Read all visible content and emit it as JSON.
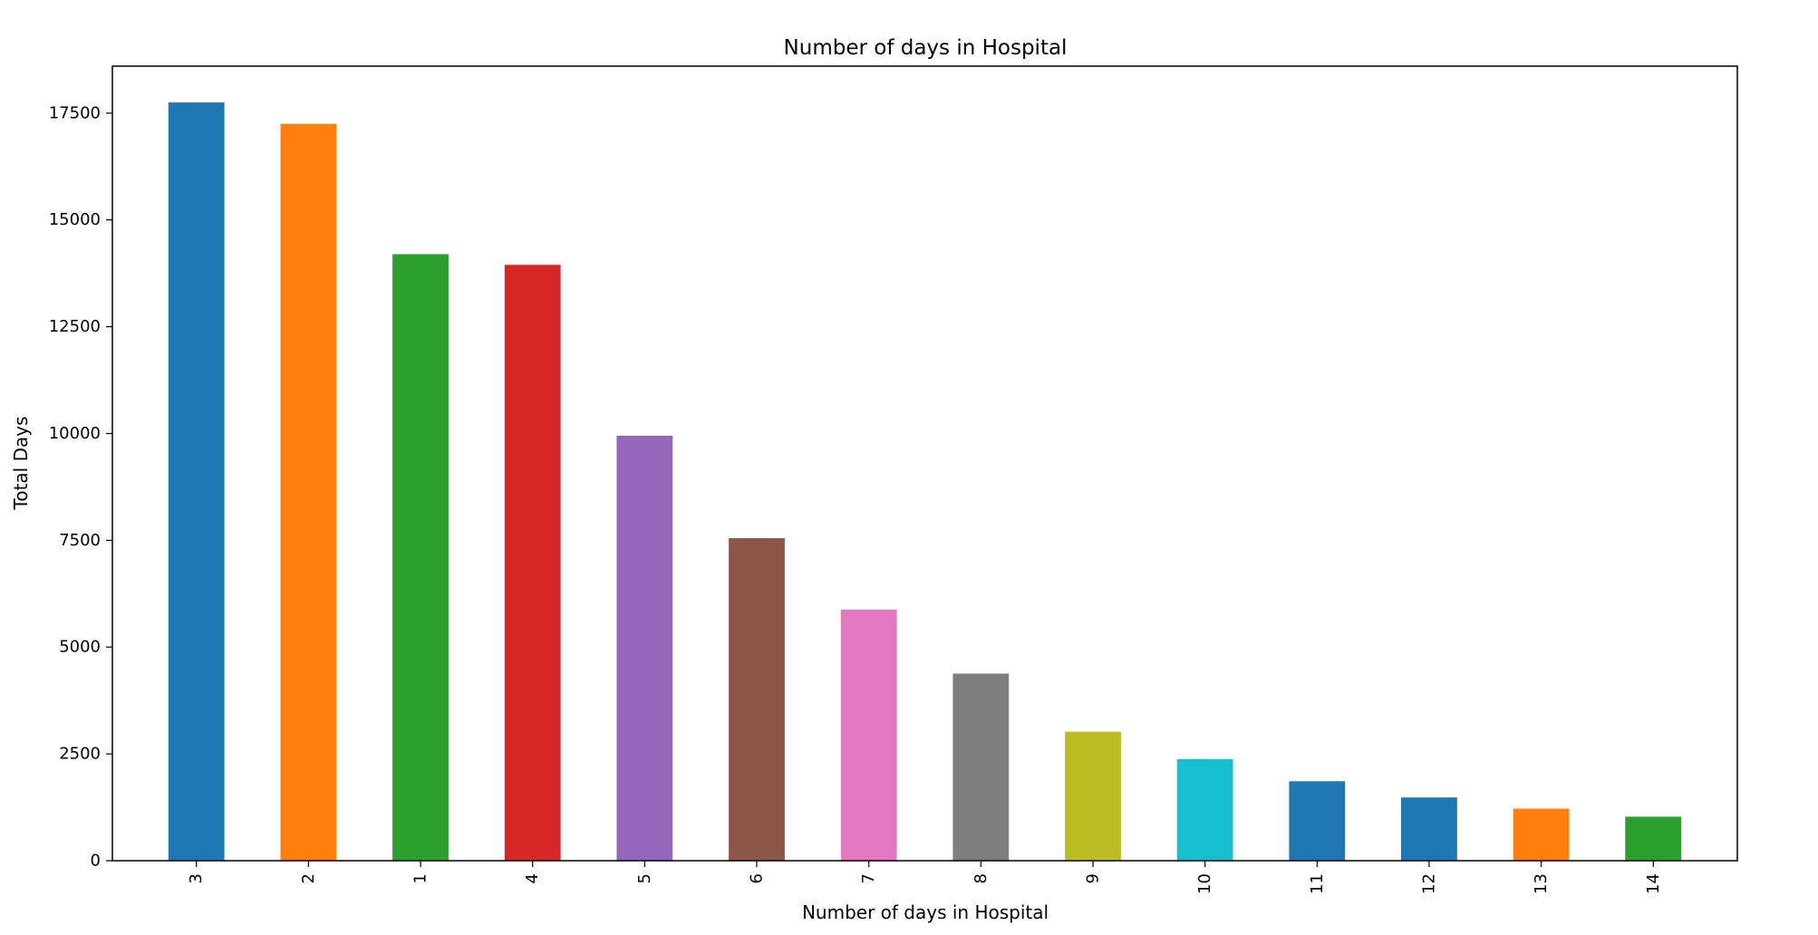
{
  "chart_data": {
    "type": "bar",
    "title": "Number of days in Hospital",
    "xlabel": "Number of days in Hospital",
    "ylabel": "Total Days",
    "categories": [
      "3",
      "2",
      "1",
      "4",
      "5",
      "6",
      "7",
      "8",
      "9",
      "10",
      "11",
      "12",
      "13",
      "14"
    ],
    "values": [
      17750,
      17250,
      14200,
      13950,
      9950,
      7550,
      5880,
      4380,
      3020,
      2380,
      1860,
      1480,
      1220,
      1030
    ],
    "colors": [
      "#1f77b4",
      "#ff7f0e",
      "#2ca02c",
      "#d62728",
      "#9467bd",
      "#8c564b",
      "#e377c2",
      "#7f7f7f",
      "#bcbd22",
      "#17becf",
      "#1f77b4",
      "#1f77b4",
      "#ff7f0e",
      "#2ca02c"
    ],
    "yticks": [
      0,
      2500,
      5000,
      7500,
      10000,
      12500,
      15000,
      17500
    ],
    "ylim": [
      0,
      18600
    ],
    "grid": false,
    "legend": "none"
  }
}
